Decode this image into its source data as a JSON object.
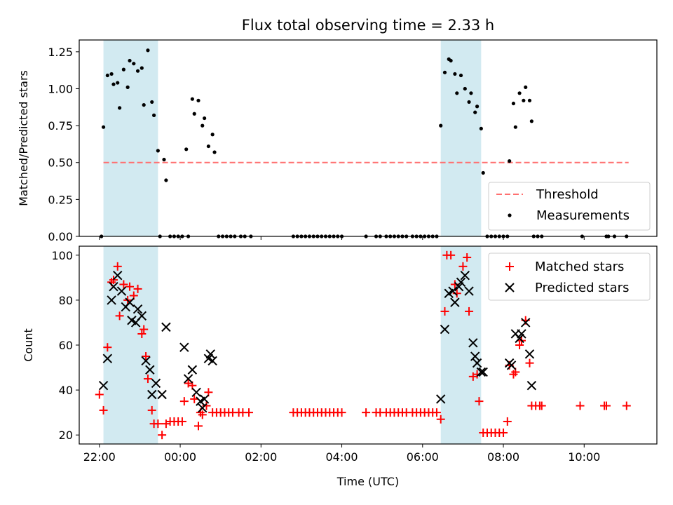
{
  "title": "Flux total observing time = 2.33 h",
  "colors": {
    "marker_black": "#000000",
    "marker_red": "#ff0000",
    "threshold": "#ff7070",
    "band": "#add8e6"
  },
  "chart_data": [
    {
      "type": "scatter",
      "id": "ratio",
      "ylabel": "Matched/Predicted stars",
      "xlim": [
        21.5,
        35.8
      ],
      "ylim": [
        0,
        1.33
      ],
      "yticks": [
        0.0,
        0.25,
        0.5,
        0.75,
        1.0,
        1.25
      ],
      "ytick_labels": [
        "0.00",
        "0.25",
        "0.50",
        "0.75",
        "1.00",
        "1.25"
      ],
      "shaded_bands": [
        [
          22.1,
          23.45
        ],
        [
          30.45,
          31.45
        ]
      ],
      "threshold": {
        "label": "Threshold",
        "value": 0.5,
        "x_range": [
          22.1,
          35.1
        ]
      },
      "legend": {
        "position": "lower right",
        "entries": [
          "Threshold",
          "Measurements"
        ]
      },
      "series": [
        {
          "name": "Measurements",
          "points": [
            [
              22.05,
              0
            ],
            [
              22.1,
              0.74
            ],
            [
              22.2,
              1.09
            ],
            [
              22.3,
              1.1
            ],
            [
              22.35,
              1.03
            ],
            [
              22.45,
              1.04
            ],
            [
              22.5,
              0.87
            ],
            [
              22.6,
              1.13
            ],
            [
              22.7,
              1.01
            ],
            [
              22.75,
              1.19
            ],
            [
              22.85,
              1.17
            ],
            [
              22.95,
              1.12
            ],
            [
              23.05,
              1.14
            ],
            [
              23.1,
              0.89
            ],
            [
              23.2,
              1.26
            ],
            [
              23.3,
              0.91
            ],
            [
              23.35,
              0.82
            ],
            [
              23.45,
              0.58
            ],
            [
              23.5,
              0
            ],
            [
              23.6,
              0.52
            ],
            [
              23.65,
              0.38
            ],
            [
              23.75,
              0
            ],
            [
              23.85,
              0
            ],
            [
              23.95,
              0
            ],
            [
              24.05,
              0
            ],
            [
              24.15,
              0.59
            ],
            [
              24.2,
              0
            ],
            [
              24.3,
              0.93
            ],
            [
              24.35,
              0.83
            ],
            [
              24.45,
              0.92
            ],
            [
              24.55,
              0.75
            ],
            [
              24.6,
              0.8
            ],
            [
              24.7,
              0.61
            ],
            [
              24.8,
              0.69
            ],
            [
              24.85,
              0.57
            ],
            [
              24.95,
              0
            ],
            [
              25.05,
              0
            ],
            [
              25.15,
              0
            ],
            [
              25.25,
              0
            ],
            [
              25.35,
              0
            ],
            [
              25.5,
              0
            ],
            [
              25.6,
              0
            ],
            [
              25.75,
              0
            ],
            [
              26.8,
              0
            ],
            [
              26.9,
              0
            ],
            [
              27.0,
              0
            ],
            [
              27.1,
              0
            ],
            [
              27.2,
              0
            ],
            [
              27.3,
              0
            ],
            [
              27.4,
              0
            ],
            [
              27.5,
              0
            ],
            [
              27.6,
              0
            ],
            [
              27.7,
              0
            ],
            [
              27.8,
              0
            ],
            [
              27.9,
              0
            ],
            [
              28.0,
              0
            ],
            [
              28.6,
              0
            ],
            [
              28.85,
              0
            ],
            [
              28.95,
              0
            ],
            [
              29.1,
              0
            ],
            [
              29.2,
              0
            ],
            [
              29.3,
              0
            ],
            [
              29.4,
              0
            ],
            [
              29.5,
              0
            ],
            [
              29.6,
              0
            ],
            [
              29.75,
              0
            ],
            [
              29.85,
              0
            ],
            [
              29.95,
              0
            ],
            [
              30.05,
              0
            ],
            [
              30.15,
              0
            ],
            [
              30.25,
              0
            ],
            [
              30.35,
              0
            ],
            [
              30.45,
              0.75
            ],
            [
              30.55,
              1.11
            ],
            [
              30.65,
              1.2
            ],
            [
              30.7,
              1.19
            ],
            [
              30.8,
              1.1
            ],
            [
              30.85,
              0.97
            ],
            [
              30.95,
              1.09
            ],
            [
              31.05,
              1.0
            ],
            [
              31.15,
              0.91
            ],
            [
              31.2,
              0.97
            ],
            [
              31.3,
              0.84
            ],
            [
              31.35,
              0.88
            ],
            [
              31.45,
              0.73
            ],
            [
              31.5,
              0.43
            ],
            [
              31.6,
              0
            ],
            [
              31.7,
              0
            ],
            [
              31.8,
              0
            ],
            [
              31.9,
              0
            ],
            [
              32.0,
              0
            ],
            [
              32.1,
              0
            ],
            [
              32.15,
              0.51
            ],
            [
              32.25,
              0.9
            ],
            [
              32.3,
              0.74
            ],
            [
              32.4,
              0.97
            ],
            [
              32.5,
              0.92
            ],
            [
              32.55,
              1.01
            ],
            [
              32.65,
              0.92
            ],
            [
              32.7,
              0.78
            ],
            [
              32.75,
              0
            ],
            [
              32.85,
              0
            ],
            [
              32.95,
              0
            ],
            [
              33.95,
              0
            ],
            [
              34.55,
              0
            ],
            [
              34.6,
              0
            ],
            [
              34.75,
              0
            ],
            [
              35.05,
              0
            ]
          ]
        }
      ]
    },
    {
      "type": "scatter",
      "id": "counts",
      "xlabel": "Time (UTC)",
      "ylabel": "Count",
      "xlim": [
        21.5,
        35.8
      ],
      "ylim": [
        16,
        104
      ],
      "yticks": [
        20,
        40,
        60,
        80,
        100
      ],
      "ytick_labels": [
        "20",
        "40",
        "60",
        "80",
        "100"
      ],
      "xticks": [
        22,
        24,
        26,
        28,
        30,
        32,
        34
      ],
      "xtick_labels": [
        "22:00",
        "00:00",
        "02:00",
        "04:00",
        "06:00",
        "08:00",
        "10:00"
      ],
      "shaded_bands": [
        [
          22.1,
          23.45
        ],
        [
          30.45,
          31.45
        ]
      ],
      "legend": {
        "position": "upper right",
        "entries": [
          "Matched stars",
          "Predicted stars"
        ]
      },
      "series": [
        {
          "name": "Matched stars",
          "marker": "+",
          "points": [
            [
              22.0,
              38
            ],
            [
              22.1,
              31
            ],
            [
              22.2,
              59
            ],
            [
              22.3,
              88
            ],
            [
              22.35,
              89
            ],
            [
              22.45,
              95
            ],
            [
              22.5,
              73
            ],
            [
              22.6,
              87
            ],
            [
              22.7,
              80
            ],
            [
              22.75,
              86
            ],
            [
              22.85,
              82
            ],
            [
              22.95,
              85
            ],
            [
              23.05,
              65
            ],
            [
              23.1,
              67
            ],
            [
              23.15,
              55
            ],
            [
              23.2,
              45
            ],
            [
              23.3,
              31
            ],
            [
              23.35,
              25
            ],
            [
              23.45,
              25
            ],
            [
              23.55,
              20
            ],
            [
              23.65,
              25
            ],
            [
              23.75,
              26
            ],
            [
              23.85,
              26
            ],
            [
              23.95,
              26
            ],
            [
              24.05,
              26
            ],
            [
              24.1,
              35
            ],
            [
              24.2,
              43
            ],
            [
              24.3,
              42
            ],
            [
              24.35,
              36
            ],
            [
              24.45,
              24
            ],
            [
              24.5,
              30
            ],
            [
              24.55,
              29
            ],
            [
              24.65,
              33
            ],
            [
              24.7,
              39
            ],
            [
              24.8,
              30
            ],
            [
              24.9,
              30
            ],
            [
              25.0,
              30
            ],
            [
              25.1,
              30
            ],
            [
              25.2,
              30
            ],
            [
              25.3,
              30
            ],
            [
              25.45,
              30
            ],
            [
              25.55,
              30
            ],
            [
              25.7,
              30
            ],
            [
              26.8,
              30
            ],
            [
              26.9,
              30
            ],
            [
              27.0,
              30
            ],
            [
              27.1,
              30
            ],
            [
              27.2,
              30
            ],
            [
              27.3,
              30
            ],
            [
              27.4,
              30
            ],
            [
              27.5,
              30
            ],
            [
              27.6,
              30
            ],
            [
              27.7,
              30
            ],
            [
              27.8,
              30
            ],
            [
              27.9,
              30
            ],
            [
              28.0,
              30
            ],
            [
              28.6,
              30
            ],
            [
              28.85,
              30
            ],
            [
              28.95,
              30
            ],
            [
              29.1,
              30
            ],
            [
              29.2,
              30
            ],
            [
              29.3,
              30
            ],
            [
              29.4,
              30
            ],
            [
              29.5,
              30
            ],
            [
              29.6,
              30
            ],
            [
              29.75,
              30
            ],
            [
              29.85,
              30
            ],
            [
              29.95,
              30
            ],
            [
              30.05,
              30
            ],
            [
              30.15,
              30
            ],
            [
              30.25,
              30
            ],
            [
              30.35,
              30
            ],
            [
              30.45,
              27
            ],
            [
              30.55,
              75
            ],
            [
              30.6,
              100
            ],
            [
              30.7,
              100
            ],
            [
              30.8,
              87
            ],
            [
              30.85,
              83
            ],
            [
              31.0,
              95
            ],
            [
              31.1,
              99
            ],
            [
              31.15,
              75
            ],
            [
              31.25,
              46
            ],
            [
              31.35,
              47
            ],
            [
              31.4,
              35
            ],
            [
              31.5,
              21
            ],
            [
              31.6,
              21
            ],
            [
              31.7,
              21
            ],
            [
              31.8,
              21
            ],
            [
              31.9,
              21
            ],
            [
              32.0,
              21
            ],
            [
              32.1,
              26
            ],
            [
              32.15,
              51
            ],
            [
              32.25,
              47
            ],
            [
              32.3,
              48
            ],
            [
              32.4,
              60
            ],
            [
              32.45,
              62
            ],
            [
              32.55,
              71
            ],
            [
              32.65,
              52
            ],
            [
              32.7,
              33
            ],
            [
              32.8,
              33
            ],
            [
              32.9,
              33
            ],
            [
              32.95,
              33
            ],
            [
              33.9,
              33
            ],
            [
              34.5,
              33
            ],
            [
              34.55,
              33
            ],
            [
              35.05,
              33
            ]
          ]
        },
        {
          "name": "Predicted stars",
          "marker": "x",
          "points": [
            [
              22.1,
              42
            ],
            [
              22.2,
              54
            ],
            [
              22.3,
              80
            ],
            [
              22.35,
              86
            ],
            [
              22.45,
              91
            ],
            [
              22.55,
              84
            ],
            [
              22.65,
              77
            ],
            [
              22.75,
              79
            ],
            [
              22.8,
              71
            ],
            [
              22.9,
              70
            ],
            [
              22.95,
              76
            ],
            [
              23.05,
              73
            ],
            [
              23.15,
              53
            ],
            [
              23.25,
              49
            ],
            [
              23.3,
              38
            ],
            [
              23.4,
              43
            ],
            [
              23.55,
              38
            ],
            [
              23.65,
              68
            ],
            [
              24.1,
              59
            ],
            [
              24.2,
              45
            ],
            [
              24.3,
              49
            ],
            [
              24.4,
              39
            ],
            [
              24.5,
              35
            ],
            [
              24.55,
              32
            ],
            [
              24.6,
              36
            ],
            [
              24.75,
              56
            ],
            [
              24.8,
              53
            ],
            [
              24.7,
              54
            ],
            [
              30.45,
              36
            ],
            [
              30.55,
              67
            ],
            [
              30.65,
              83
            ],
            [
              30.75,
              84
            ],
            [
              30.8,
              79
            ],
            [
              30.9,
              86
            ],
            [
              30.95,
              88
            ],
            [
              31.05,
              91
            ],
            [
              31.15,
              84
            ],
            [
              31.25,
              61
            ],
            [
              31.3,
              55
            ],
            [
              31.35,
              52
            ],
            [
              31.45,
              48
            ],
            [
              31.5,
              48
            ],
            [
              32.15,
              52
            ],
            [
              32.2,
              51
            ],
            [
              32.3,
              65
            ],
            [
              32.4,
              63
            ],
            [
              32.45,
              65
            ],
            [
              32.55,
              70
            ],
            [
              32.65,
              56
            ],
            [
              32.7,
              42
            ]
          ]
        }
      ]
    }
  ]
}
